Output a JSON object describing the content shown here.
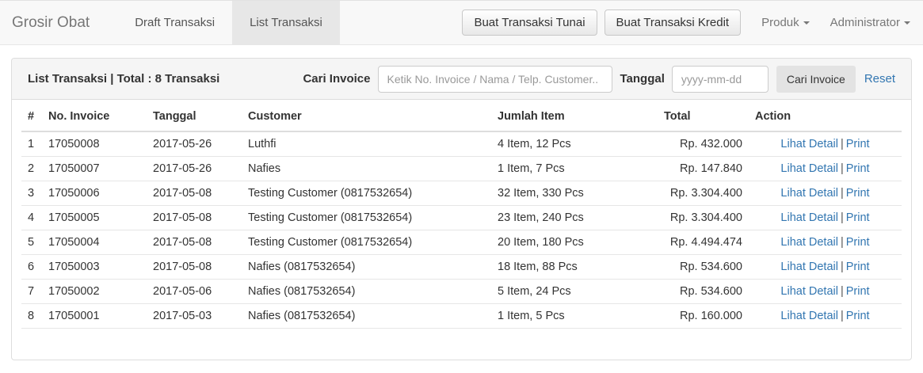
{
  "colors": {
    "link_blue": "#3276b1",
    "navbar_bg": "#f8f8f8",
    "active_tab_bg": "#e7e7e7",
    "panel_header_bg": "#f5f5f5",
    "border": "#dddddd",
    "text": "#333333",
    "muted_text": "#777777"
  },
  "navbar": {
    "brand": "Grosir Obat",
    "tabs": [
      {
        "label": "Draft Transaksi",
        "active": false
      },
      {
        "label": "List Transaksi",
        "active": true
      }
    ],
    "buttons": {
      "tunai": "Buat Transaksi Tunai",
      "kredit": "Buat Transaksi Kredit"
    },
    "dropdowns": {
      "produk": "Produk",
      "admin": "Administrator"
    }
  },
  "panel": {
    "title": "List Transaksi | Total : 8 Transaksi",
    "search": {
      "invoice_label": "Cari Invoice",
      "invoice_placeholder": "Ketik No. Invoice / Nama / Telp. Customer..",
      "invoice_value": "",
      "date_label": "Tanggal",
      "date_placeholder": "yyyy-mm-dd",
      "date_value": "",
      "search_button": "Cari Invoice",
      "reset_link": "Reset"
    },
    "table": {
      "headers": [
        "#",
        "No. Invoice",
        "Tanggal",
        "Customer",
        "Jumlah Item",
        "Total",
        "Action"
      ],
      "action_links": {
        "detail": "Lihat Detail",
        "separator": "|",
        "print": "Print"
      },
      "rows": [
        {
          "no": "1",
          "invoice": "17050008",
          "date": "2017-05-26",
          "customer": "Luthfi",
          "items": "4 Item, 12 Pcs",
          "total": "Rp. 432.000"
        },
        {
          "no": "2",
          "invoice": "17050007",
          "date": "2017-05-26",
          "customer": "Nafies",
          "items": "1 Item, 7 Pcs",
          "total": "Rp. 147.840"
        },
        {
          "no": "3",
          "invoice": "17050006",
          "date": "2017-05-08",
          "customer": "Testing Customer (0817532654)",
          "items": "32 Item, 330 Pcs",
          "total": "Rp. 3.304.400"
        },
        {
          "no": "4",
          "invoice": "17050005",
          "date": "2017-05-08",
          "customer": "Testing Customer (0817532654)",
          "items": "23 Item, 240 Pcs",
          "total": "Rp. 3.304.400"
        },
        {
          "no": "5",
          "invoice": "17050004",
          "date": "2017-05-08",
          "customer": "Testing Customer (0817532654)",
          "items": "20 Item, 180 Pcs",
          "total": "Rp. 4.494.474"
        },
        {
          "no": "6",
          "invoice": "17050003",
          "date": "2017-05-08",
          "customer": "Nafies (0817532654)",
          "items": "18 Item, 88 Pcs",
          "total": "Rp. 534.600"
        },
        {
          "no": "7",
          "invoice": "17050002",
          "date": "2017-05-06",
          "customer": "Nafies (0817532654)",
          "items": "5 Item, 24 Pcs",
          "total": "Rp. 534.600"
        },
        {
          "no": "8",
          "invoice": "17050001",
          "date": "2017-05-03",
          "customer": "Nafies (0817532654)",
          "items": "1 Item, 5 Pcs",
          "total": "Rp. 160.000"
        }
      ]
    }
  }
}
